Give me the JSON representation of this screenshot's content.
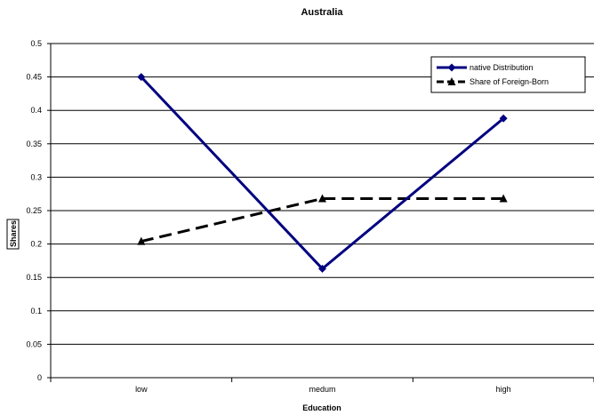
{
  "chart_data": {
    "type": "line",
    "title": "Australia",
    "xlabel": "Education",
    "ylabel": "Shares",
    "categories": [
      "low",
      "medum",
      "high"
    ],
    "ylim": [
      0,
      0.5
    ],
    "yticks": [
      "0",
      "0.05",
      "0.1",
      "0.15",
      "0.2",
      "0.25",
      "0.3",
      "0.35",
      "0.4",
      "0.45",
      "0.5"
    ],
    "grid": true,
    "legend_position": "top-right",
    "series": [
      {
        "name": "native Distribution",
        "values": [
          0.45,
          0.163,
          0.388
        ],
        "color": "#000080",
        "marker": "diamond",
        "line": "solid"
      },
      {
        "name": "Share of Foreign-Born",
        "values": [
          0.204,
          0.268,
          0.268
        ],
        "color": "#000000",
        "marker": "triangle",
        "line": "dashed"
      }
    ]
  }
}
